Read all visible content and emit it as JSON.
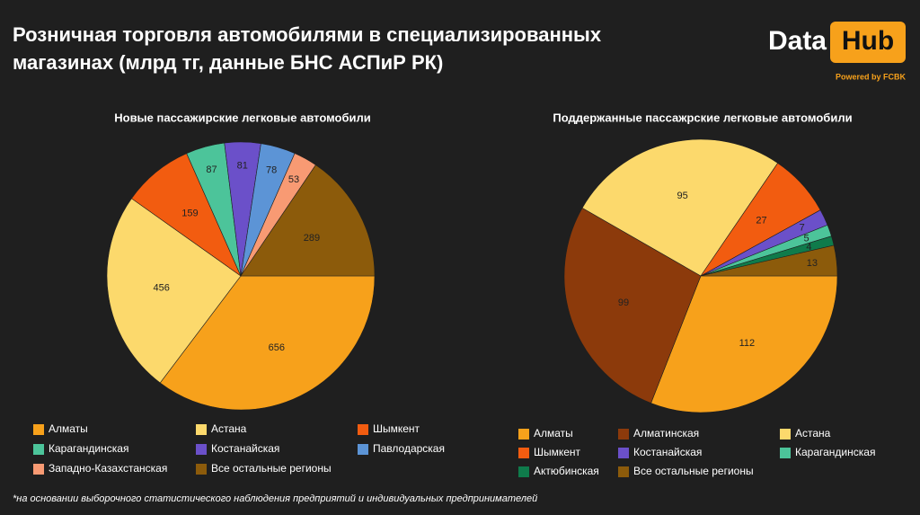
{
  "header": {
    "title_lines": [
      "Розничная торговля автомобилями в специализированных",
      "магазинах (млрд тг, данные БНС АСПиР РК)"
    ],
    "logo_left": "Data",
    "logo_right": "Hub",
    "logo_sub": "Powered by FCBK"
  },
  "footnote": "*на основании выборочного статистического наблюдения предприятий и  индивидуальных предпринимателей",
  "chart_data": [
    {
      "type": "pie",
      "title": "Новые пассажирские легковые автомобили",
      "categories": [
        "Алматы",
        "Астана",
        "Шымкент",
        "Карагандинская",
        "Костанайская",
        "Павлодарская",
        "Западно-Казахстанская",
        "Все остальные регионы"
      ],
      "values": [
        656,
        456,
        159,
        87,
        81,
        78,
        53,
        289
      ],
      "colors": [
        "#f7a11b",
        "#fcd96c",
        "#f25c10",
        "#4cc49a",
        "#6b50c9",
        "#5c94d6",
        "#f89a73",
        "#8c5b0b"
      ]
    },
    {
      "type": "pie",
      "title": "Поддержанные пассажрские легковые автомобили",
      "categories": [
        "Алматы",
        "Алматинская",
        "Астана",
        "Шымкент",
        "Костанайская",
        "Карагандинская",
        "Актюбинская",
        "Все остальные регионы"
      ],
      "values": [
        112,
        99,
        95,
        27,
        7,
        5,
        4,
        13
      ],
      "colors": [
        "#f7a11b",
        "#8c3a0b",
        "#fcd96c",
        "#f25c10",
        "#6b50c9",
        "#4cc49a",
        "#0f7b4b",
        "#8c5b0b"
      ]
    }
  ]
}
